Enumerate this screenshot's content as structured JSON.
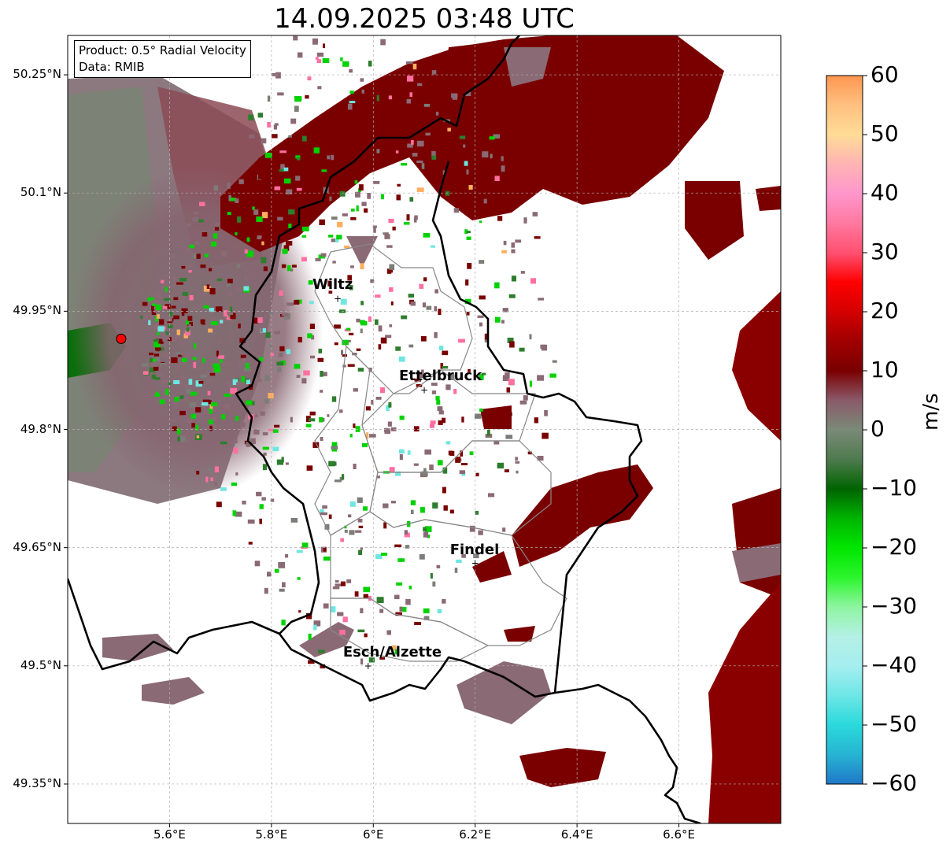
{
  "title": "14.09.2025 03:48 UTC",
  "info_box": {
    "product": "Product: 0.5° Radial Velocity",
    "data_source": "Data: RMIB"
  },
  "map_extent": {
    "lon_min": 5.4,
    "lon_max": 6.8,
    "lat_min": 49.3,
    "lat_max": 50.3
  },
  "latitude_labels": [
    {
      "value": 50.25,
      "text": "50.25°N"
    },
    {
      "value": 50.1,
      "text": "50.1°N"
    },
    {
      "value": 49.95,
      "text": "49.95°N"
    },
    {
      "value": 49.8,
      "text": "49.8°N"
    },
    {
      "value": 49.65,
      "text": "49.65°N"
    },
    {
      "value": 49.5,
      "text": "49.5°N"
    },
    {
      "value": 49.35,
      "text": "49.35°N"
    }
  ],
  "longitude_labels": [
    {
      "value": 5.6,
      "text": "5.6°E"
    },
    {
      "value": 5.8,
      "text": "5.8°E"
    },
    {
      "value": 6.0,
      "text": "6°E"
    },
    {
      "value": 6.2,
      "text": "6.2°E"
    },
    {
      "value": 6.4,
      "text": "6.4°E"
    },
    {
      "value": 6.6,
      "text": "6.6°E"
    }
  ],
  "cities": [
    {
      "name": "Wiltz",
      "lon": 5.93,
      "lat": 49.966
    },
    {
      "name": "Ettelbruck",
      "lon": 6.1,
      "lat": 49.85
    },
    {
      "name": "Findel",
      "lon": 6.2,
      "lat": 49.63
    },
    {
      "name": "Esch/Alzette",
      "lon": 5.99,
      "lat": 49.5
    }
  ],
  "radar_site": {
    "lon": 5.505,
    "lat": 49.915,
    "color": "#ff0000"
  },
  "colorbar": {
    "label": "m/s",
    "min": -60,
    "max": 60,
    "ticks": [
      {
        "value": 60,
        "text": "60"
      },
      {
        "value": 50,
        "text": "50"
      },
      {
        "value": 40,
        "text": "40"
      },
      {
        "value": 30,
        "text": "30"
      },
      {
        "value": 20,
        "text": "20"
      },
      {
        "value": 10,
        "text": "10"
      },
      {
        "value": 0,
        "text": "0"
      },
      {
        "value": -10,
        "text": "−10"
      },
      {
        "value": -20,
        "text": "−20"
      },
      {
        "value": -30,
        "text": "−30"
      },
      {
        "value": -40,
        "text": "−40"
      },
      {
        "value": -50,
        "text": "−50"
      },
      {
        "value": -60,
        "text": "−60"
      }
    ],
    "stops": [
      {
        "value": -60,
        "color": "#1f78c8"
      },
      {
        "value": -55,
        "color": "#26b4d2"
      },
      {
        "value": -50,
        "color": "#2ad9dc"
      },
      {
        "value": -45,
        "color": "#6ee6e6"
      },
      {
        "value": -40,
        "color": "#a5eef0"
      },
      {
        "value": -35,
        "color": "#b4f0e6"
      },
      {
        "value": -30,
        "color": "#8ef5a0"
      },
      {
        "value": -25,
        "color": "#2cf52c"
      },
      {
        "value": -20,
        "color": "#00e600"
      },
      {
        "value": -15,
        "color": "#00b400"
      },
      {
        "value": -10,
        "color": "#006400"
      },
      {
        "value": -5,
        "color": "#4e7a4e"
      },
      {
        "value": 0,
        "color": "#7a8a78"
      },
      {
        "value": 5,
        "color": "#8a5a6a"
      },
      {
        "value": 10,
        "color": "#7a0000"
      },
      {
        "value": 15,
        "color": "#a00000"
      },
      {
        "value": 20,
        "color": "#d40000"
      },
      {
        "value": 25,
        "color": "#ff0000"
      },
      {
        "value": 30,
        "color": "#ff5070"
      },
      {
        "value": 35,
        "color": "#ff78a0"
      },
      {
        "value": 40,
        "color": "#ff96cc"
      },
      {
        "value": 45,
        "color": "#ffb4b4"
      },
      {
        "value": 50,
        "color": "#ffdc96"
      },
      {
        "value": 55,
        "color": "#ffc080"
      },
      {
        "value": 60,
        "color": "#ff9650"
      }
    ]
  },
  "colors": {
    "inbound_dark": "#7a0000",
    "inbound_red": "#a30000",
    "neutral_mauve": "#8a6a74",
    "neutral_grey": "#7c7c78",
    "outbound_green": "#2e7d2e",
    "outbound_bright": "#00d200",
    "border_black": "#000000",
    "canton_grey": "#888888",
    "grid_grey": "#b0b0b0"
  }
}
